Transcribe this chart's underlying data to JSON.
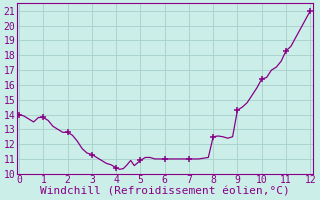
{
  "title": "",
  "xlabel": "Windchill (Refroidissement éolien,°C)",
  "ylabel": "",
  "bg_color": "#cceee8",
  "grid_color": "#aad4ce",
  "line_color": "#880088",
  "marker_color": "#880088",
  "xlim": [
    -0.1,
    12.1
  ],
  "ylim": [
    10,
    21.5
  ],
  "yticks": [
    10,
    11,
    12,
    13,
    14,
    15,
    16,
    17,
    18,
    19,
    20,
    21
  ],
  "xticks": [
    0,
    1,
    2,
    3,
    4,
    5,
    6,
    7,
    8,
    9,
    10,
    11,
    12
  ],
  "x": [
    0.0,
    0.2,
    0.4,
    0.6,
    0.8,
    1.0,
    1.2,
    1.4,
    1.6,
    1.8,
    2.0,
    2.2,
    2.4,
    2.6,
    2.8,
    3.0,
    3.2,
    3.4,
    3.6,
    3.8,
    4.0,
    4.15,
    4.3,
    4.45,
    4.6,
    4.75,
    5.0,
    5.2,
    5.4,
    5.6,
    5.8,
    6.0,
    6.2,
    6.4,
    6.6,
    6.8,
    7.0,
    7.2,
    7.4,
    7.6,
    7.8,
    8.0,
    8.2,
    8.4,
    8.6,
    8.8,
    9.0,
    9.2,
    9.4,
    9.6,
    9.8,
    10.0,
    10.2,
    10.4,
    10.6,
    10.8,
    11.0,
    11.2,
    11.4,
    11.6,
    11.8,
    12.0
  ],
  "y": [
    14.0,
    13.9,
    13.7,
    13.5,
    13.8,
    13.8,
    13.6,
    13.2,
    13.0,
    12.8,
    12.8,
    12.6,
    12.2,
    11.7,
    11.4,
    11.3,
    11.1,
    10.9,
    10.7,
    10.6,
    10.4,
    10.3,
    10.35,
    10.6,
    10.9,
    10.55,
    10.9,
    11.1,
    11.1,
    11.0,
    11.0,
    11.0,
    11.0,
    11.0,
    11.0,
    11.0,
    11.0,
    11.0,
    11.0,
    11.05,
    11.1,
    12.5,
    12.55,
    12.5,
    12.4,
    12.5,
    14.3,
    14.5,
    14.8,
    15.3,
    15.8,
    16.4,
    16.5,
    17.0,
    17.2,
    17.6,
    18.3,
    18.6,
    19.2,
    19.8,
    20.4,
    21.0
  ],
  "marker_x": [
    0,
    1.0,
    2.0,
    3.0,
    4.0,
    5.0,
    6.0,
    7.0,
    8.0,
    9.0,
    10.0,
    11.0,
    12.0
  ],
  "marker_y": [
    14.0,
    13.8,
    12.8,
    11.3,
    10.4,
    10.9,
    11.0,
    11.0,
    12.5,
    14.3,
    16.4,
    18.3,
    21.0
  ],
  "xlabel_color": "#880088",
  "tick_color": "#880088",
  "axis_color": "#880088",
  "xlabel_fontsize": 8,
  "tick_fontsize": 7
}
